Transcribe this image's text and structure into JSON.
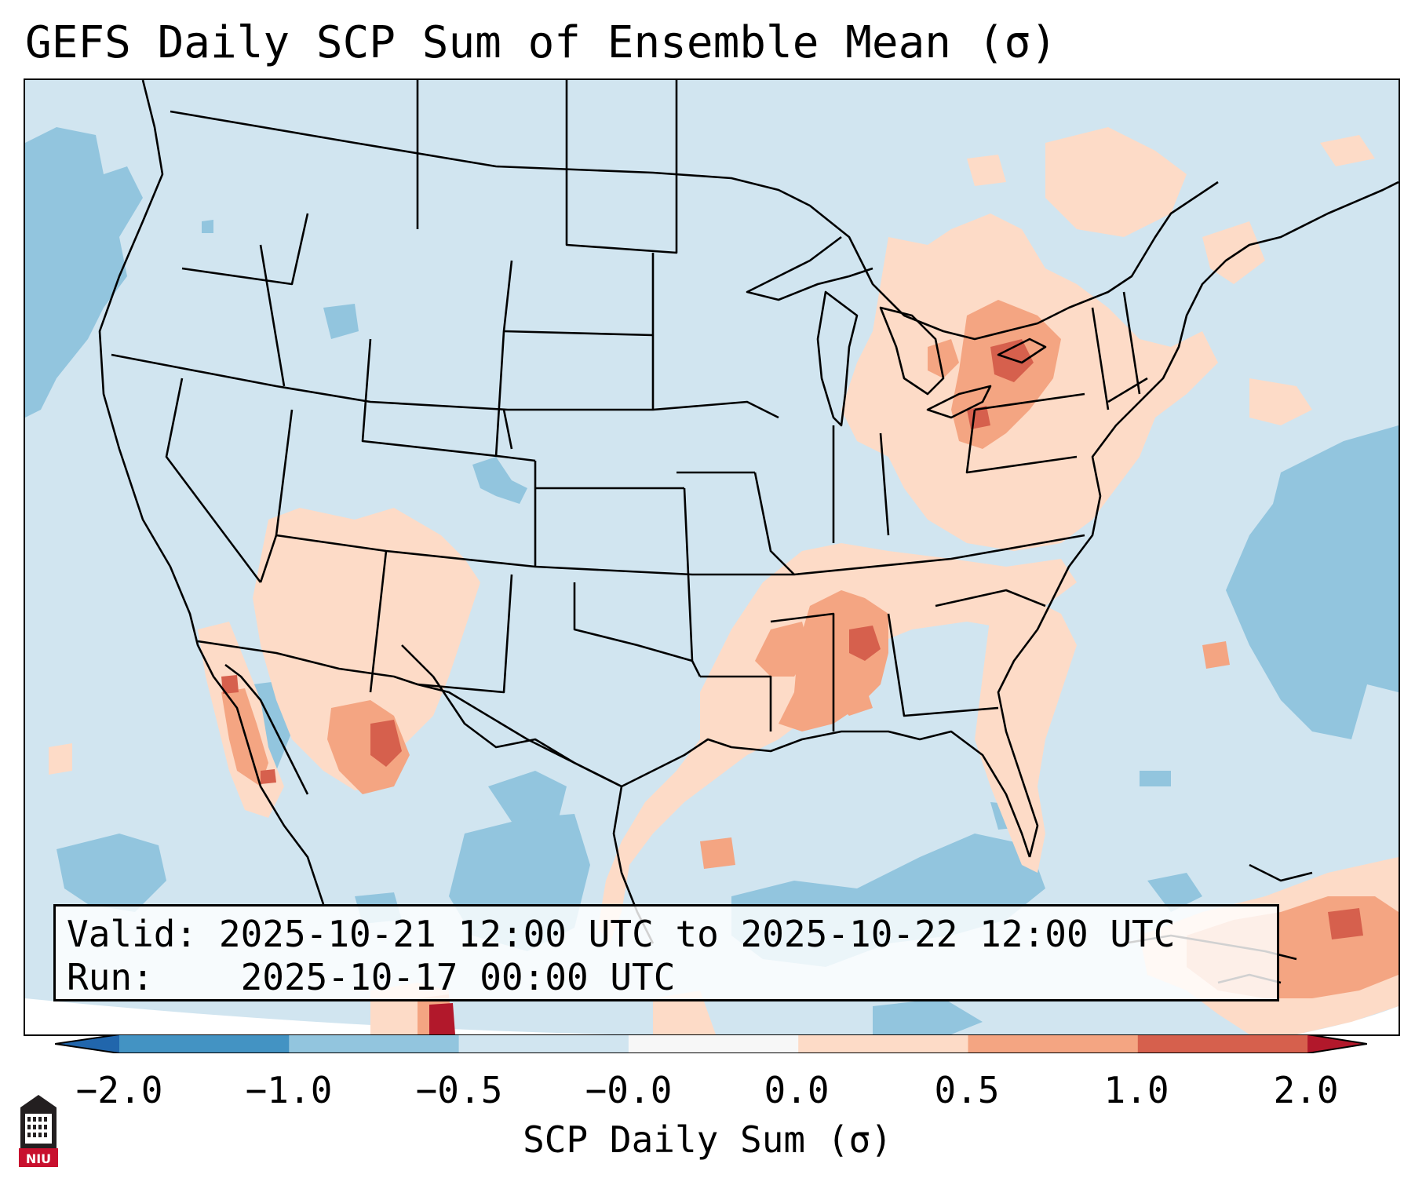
{
  "title": "GEFS Daily SCP Sum of Ensemble Mean (σ)",
  "info": {
    "valid_label": "Valid:",
    "valid_value": "2025-10-21 12:00 UTC to 2025-10-22 12:00 UTC",
    "run_label": "Run:",
    "run_value": "2025-10-17 00:00 UTC"
  },
  "colorbar": {
    "label": "SCP Daily Sum (σ)",
    "ticks": [
      "−2.0",
      "−1.0",
      "−0.5",
      "−0.0",
      "0.0",
      "0.5",
      "1.0",
      "2.0"
    ],
    "colors": [
      "#4393c3",
      "#92c5de",
      "#d1e5f0",
      "#f7f7f7",
      "#fddbc7",
      "#f4a582",
      "#d6604d"
    ],
    "extend_low_color": "#2166ac",
    "extend_high_color": "#b2182b"
  },
  "logo": {
    "text": "NIU",
    "icon": "university-tower-icon"
  },
  "map": {
    "projection": "Lambert conformal, CONUS",
    "field": "SCP daily sum of ensemble mean (σ)",
    "regions": [
      {
        "name": "Pacific Ocean west of Washington/Oregon",
        "category": "-1.0 to -0.5"
      },
      {
        "name": "Western Gulf of Mexico",
        "category": "-1.0 to -0.5"
      },
      {
        "name": "Western Atlantic east of Carolinas",
        "category": "-1.0 to -0.5"
      },
      {
        "name": "Arizona / New Mexico",
        "category": "0.0 to 0.5"
      },
      {
        "name": "Southern New Mexico",
        "category": "0.5 to 1.0"
      },
      {
        "name": "Gulf of California coast",
        "category": "0.5 to 1.0"
      },
      {
        "name": "Arkansas / Tennessee Valley",
        "category": "0.0 to 0.5"
      },
      {
        "name": "Mississippi / Alabama",
        "category": "0.5 to 1.0"
      },
      {
        "name": "Southern Ontario / Lake Ontario",
        "category": "1.0 to 2.0"
      },
      {
        "name": "Great Lakes / Northeast",
        "category": "0.5 to 1.0"
      },
      {
        "name": "Florida / Southeast coast",
        "category": "0.0 to 0.5"
      },
      {
        "name": "Caribbean / Bahamas",
        "category": "0.5 to 1.0"
      }
    ]
  }
}
